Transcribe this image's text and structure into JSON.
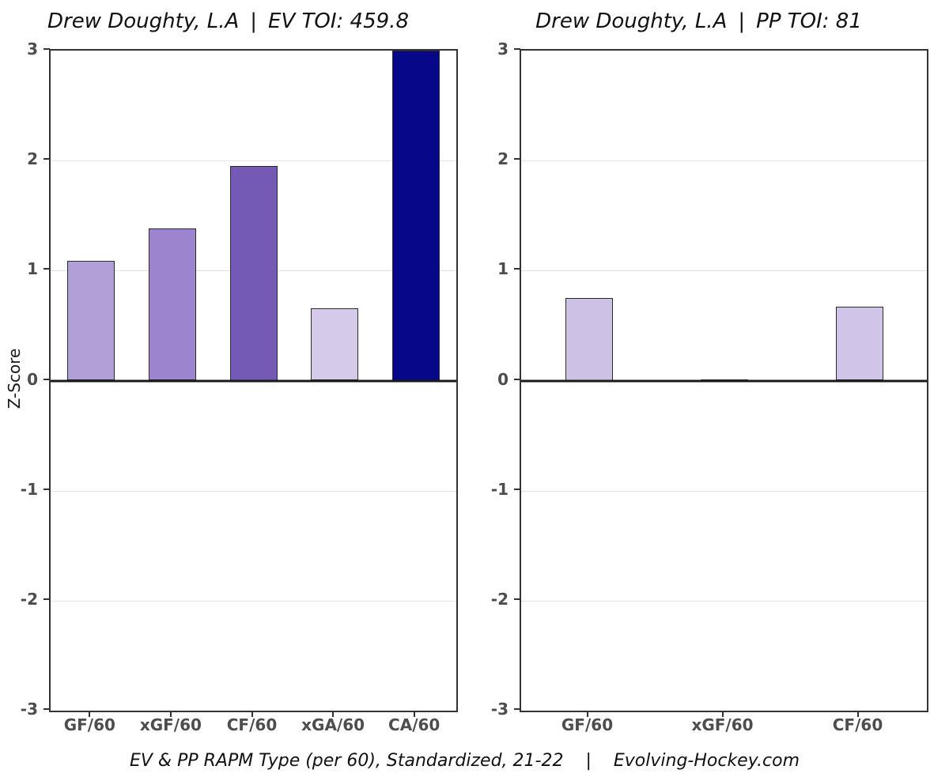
{
  "figure": {
    "background": "#ffffff",
    "y_axis_label": "Z-Score",
    "caption": {
      "text_left": "EV & PP RAPM Type (per 60), Standardized, 21-22",
      "separator": "|",
      "text_right": "Evolving-Hockey.com"
    }
  },
  "style": {
    "bar_border_color": "#2b2b2b",
    "gridline_color": "#e3e3e3",
    "axis_frame_color": "#333333",
    "zero_line_color": "#1a1a1a",
    "tick_color": "#333333",
    "tick_label_color": "#4d4d4d",
    "title_color": "#111111"
  },
  "chart_data": [
    {
      "type": "bar",
      "title": "Drew Doughty, L.A | EV TOI: 459.8",
      "title_parts": {
        "player": "Drew Doughty, L.A",
        "separator": "|",
        "stat": "EV TOI: 459.8"
      },
      "ylabel": "Z-Score",
      "ylim": [
        -3,
        3
      ],
      "yticks": [
        3,
        2,
        1,
        0,
        -1,
        -2,
        -3
      ],
      "grid": "light horizontal lines at integer z-scores, heavy black line at 0",
      "legend": "none",
      "categories": [
        "GF/60",
        "xGF/60",
        "CF/60",
        "xGA/60",
        "CA/60"
      ],
      "values": [
        1.09,
        1.38,
        1.95,
        0.66,
        3.0
      ],
      "clipped_at_max": [
        false,
        false,
        false,
        false,
        true
      ],
      "bar_colors": [
        "#b19fd8",
        "#9c85ce",
        "#7459b5",
        "#d5cae9",
        "#07078a"
      ]
    },
    {
      "type": "bar",
      "title": "Drew Doughty, L.A | PP TOI: 81",
      "title_parts": {
        "player": "Drew Doughty, L.A",
        "separator": "|",
        "stat": "PP TOI: 81"
      },
      "ylabel": "Z-Score",
      "ylim": [
        -3,
        3
      ],
      "yticks": [
        3,
        2,
        1,
        0,
        -1,
        -2,
        -3
      ],
      "grid": "light horizontal lines at integer z-scores, heavy black line at 0",
      "legend": "none",
      "categories": [
        "GF/60",
        "xGF/60",
        "CF/60"
      ],
      "values": [
        0.75,
        0.01,
        0.67
      ],
      "clipped_at_max": [
        false,
        false,
        false
      ],
      "bar_colors": [
        "#cdc1e5",
        "#cdc1e5",
        "#d0c5e8"
      ]
    }
  ]
}
